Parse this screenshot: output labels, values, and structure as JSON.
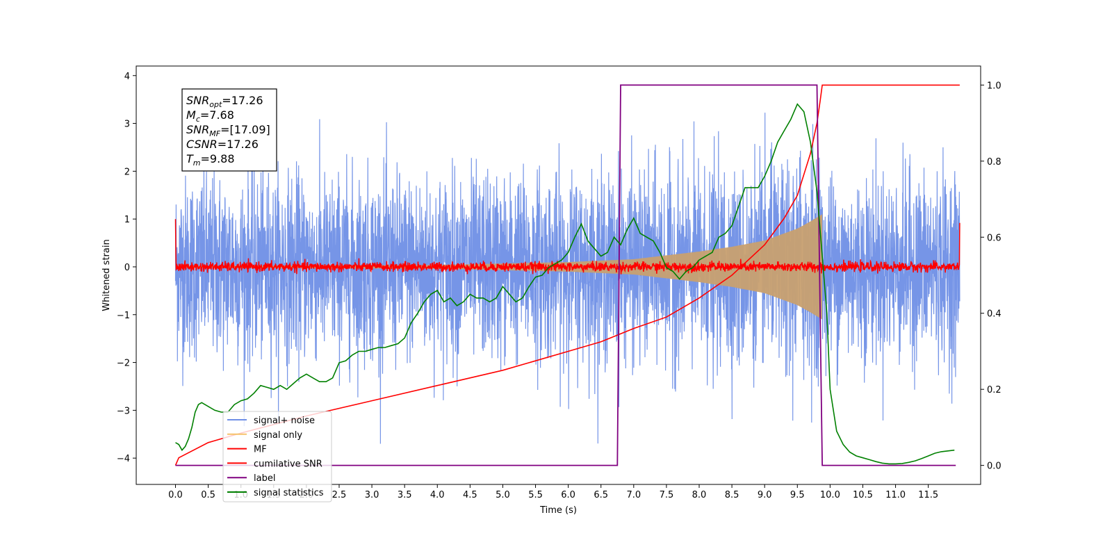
{
  "chart_data": {
    "type": "line",
    "title": "",
    "xlabel": "Time (s)",
    "ylabel_left": "Whitened strain",
    "ylabel_right": "",
    "xlim": [
      -0.6,
      12.3
    ],
    "ylim_left": [
      -4.55,
      4.2
    ],
    "ylim_right": [
      -0.05,
      1.05
    ],
    "x_ticks": [
      0.0,
      0.5,
      1.0,
      1.5,
      2.0,
      2.5,
      3.0,
      3.5,
      4.0,
      4.5,
      5.0,
      5.5,
      6.0,
      6.5,
      7.0,
      7.5,
      8.0,
      8.5,
      9.0,
      9.5,
      10.0,
      10.5,
      11.0,
      11.5
    ],
    "x_tick_labels": [
      "0.0",
      "0.5",
      "1.0",
      "1.5",
      "2.0",
      "2.5",
      "3.0",
      "3.5",
      "4.0",
      "4.5",
      "5.0",
      "5.5",
      "6.0",
      "6.5",
      "7.0",
      "7.5",
      "8.0",
      "8.5",
      "9.0",
      "9.5",
      "10.0",
      "10.5",
      "11.0",
      "11.5"
    ],
    "y_left_ticks": [
      -4,
      -3,
      -2,
      -1,
      0,
      1,
      2,
      3,
      4
    ],
    "y_left_tick_labels": [
      "−4",
      "−3",
      "−2",
      "−1",
      "0",
      "1",
      "2",
      "3",
      "4"
    ],
    "y_right_ticks": [
      0.0,
      0.2,
      0.4,
      0.6,
      0.8,
      1.0
    ],
    "y_right_tick_labels": [
      "0.0",
      "0.2",
      "0.4",
      "0.6",
      "0.8",
      "1.0"
    ],
    "grid": false,
    "legend_position": "bottom-left",
    "legend": [
      {
        "label": "signal+ noise",
        "color": "#6f8fe6"
      },
      {
        "label": "signal only",
        "color": "#f5c26b"
      },
      {
        "label": "MF",
        "color": "#ff0000"
      },
      {
        "label": "cumilative SNR",
        "color": "#ff0000"
      },
      {
        "label": "label",
        "color": "#800080"
      },
      {
        "label": "signal statistics",
        "color": "#008000"
      }
    ],
    "annotation": {
      "lines": [
        {
          "base": "SNR",
          "sub": "opt",
          "value": "=17.26"
        },
        {
          "base": "M",
          "sub": "c",
          "value": "=7.68"
        },
        {
          "base": "SNR",
          "sub": "MF",
          "value": "=[17.09]"
        },
        {
          "base": "CSNR",
          "sub": "",
          "value": "=17.26"
        },
        {
          "base": "T",
          "sub": "m",
          "value": "=9.88"
        }
      ]
    },
    "series": [
      {
        "name": "signal+ noise",
        "axis": "left",
        "color": "#6f8fe6",
        "x_range": [
          0.0,
          11.98
        ],
        "noise_std": 1.0,
        "peak_max": 3.85,
        "peak_min": -3.7
      },
      {
        "name": "signal only",
        "axis": "left",
        "color": "#c8a070",
        "style": "chirp envelope",
        "x_range": [
          0.0,
          9.88
        ],
        "amplitude_points": [
          [
            0.0,
            0.02
          ],
          [
            4.0,
            0.04
          ],
          [
            6.0,
            0.1
          ],
          [
            7.0,
            0.16
          ],
          [
            8.0,
            0.32
          ],
          [
            8.5,
            0.42
          ],
          [
            9.0,
            0.55
          ],
          [
            9.5,
            0.8
          ],
          [
            9.7,
            0.95
          ],
          [
            9.82,
            1.05
          ],
          [
            9.88,
            1.1
          ]
        ]
      },
      {
        "name": "MF",
        "axis": "left",
        "color": "#ff0000",
        "x_range": [
          0.0,
          11.98
        ],
        "noise_std": 0.05,
        "endpoints": [
          [
            0.0,
            1.0
          ],
          [
            11.98,
            0.92
          ]
        ]
      },
      {
        "name": "cumilative SNR",
        "axis": "right",
        "color": "#ff0000",
        "points": [
          [
            0.0,
            0.0
          ],
          [
            0.05,
            0.02
          ],
          [
            0.5,
            0.06
          ],
          [
            1.0,
            0.085
          ],
          [
            2.0,
            0.13
          ],
          [
            3.0,
            0.17
          ],
          [
            4.0,
            0.21
          ],
          [
            5.0,
            0.25
          ],
          [
            6.0,
            0.3
          ],
          [
            6.5,
            0.325
          ],
          [
            7.0,
            0.36
          ],
          [
            7.5,
            0.39
          ],
          [
            8.0,
            0.44
          ],
          [
            8.5,
            0.5
          ],
          [
            9.0,
            0.58
          ],
          [
            9.3,
            0.65
          ],
          [
            9.5,
            0.71
          ],
          [
            9.7,
            0.82
          ],
          [
            9.8,
            0.9
          ],
          [
            9.85,
            0.96
          ],
          [
            9.88,
            1.0
          ],
          [
            11.98,
            1.0
          ]
        ]
      },
      {
        "name": "label",
        "axis": "right",
        "color": "#800080",
        "points": [
          [
            0.0,
            0.0
          ],
          [
            6.75,
            0.0
          ],
          [
            6.8,
            1.0
          ],
          [
            9.8,
            1.0
          ],
          [
            9.88,
            0.0
          ],
          [
            11.92,
            0.0
          ]
        ]
      },
      {
        "name": "signal statistics",
        "axis": "right",
        "color": "#008000",
        "points": [
          [
            0.0,
            0.06
          ],
          [
            0.05,
            0.055
          ],
          [
            0.1,
            0.04
          ],
          [
            0.15,
            0.05
          ],
          [
            0.2,
            0.07
          ],
          [
            0.25,
            0.1
          ],
          [
            0.3,
            0.14
          ],
          [
            0.35,
            0.16
          ],
          [
            0.4,
            0.165
          ],
          [
            0.5,
            0.155
          ],
          [
            0.6,
            0.145
          ],
          [
            0.7,
            0.14
          ],
          [
            0.8,
            0.14
          ],
          [
            0.9,
            0.16
          ],
          [
            1.0,
            0.17
          ],
          [
            1.1,
            0.175
          ],
          [
            1.2,
            0.19
          ],
          [
            1.3,
            0.21
          ],
          [
            1.4,
            0.205
          ],
          [
            1.5,
            0.2
          ],
          [
            1.6,
            0.21
          ],
          [
            1.7,
            0.2
          ],
          [
            1.8,
            0.215
          ],
          [
            1.9,
            0.23
          ],
          [
            2.0,
            0.24
          ],
          [
            2.1,
            0.23
          ],
          [
            2.2,
            0.22
          ],
          [
            2.3,
            0.22
          ],
          [
            2.4,
            0.23
          ],
          [
            2.5,
            0.27
          ],
          [
            2.6,
            0.275
          ],
          [
            2.7,
            0.29
          ],
          [
            2.8,
            0.3
          ],
          [
            2.9,
            0.3
          ],
          [
            3.0,
            0.305
          ],
          [
            3.1,
            0.31
          ],
          [
            3.2,
            0.31
          ],
          [
            3.3,
            0.315
          ],
          [
            3.4,
            0.32
          ],
          [
            3.5,
            0.335
          ],
          [
            3.6,
            0.375
          ],
          [
            3.7,
            0.4
          ],
          [
            3.8,
            0.43
          ],
          [
            3.9,
            0.45
          ],
          [
            4.0,
            0.46
          ],
          [
            4.1,
            0.43
          ],
          [
            4.2,
            0.44
          ],
          [
            4.3,
            0.42
          ],
          [
            4.4,
            0.43
          ],
          [
            4.5,
            0.45
          ],
          [
            4.6,
            0.44
          ],
          [
            4.7,
            0.44
          ],
          [
            4.8,
            0.43
          ],
          [
            4.9,
            0.44
          ],
          [
            5.0,
            0.47
          ],
          [
            5.1,
            0.45
          ],
          [
            5.2,
            0.43
          ],
          [
            5.3,
            0.44
          ],
          [
            5.4,
            0.47
          ],
          [
            5.5,
            0.495
          ],
          [
            5.6,
            0.5
          ],
          [
            5.7,
            0.52
          ],
          [
            5.8,
            0.53
          ],
          [
            5.9,
            0.54
          ],
          [
            6.0,
            0.56
          ],
          [
            6.1,
            0.6
          ],
          [
            6.2,
            0.635
          ],
          [
            6.3,
            0.59
          ],
          [
            6.4,
            0.57
          ],
          [
            6.5,
            0.55
          ],
          [
            6.6,
            0.56
          ],
          [
            6.7,
            0.6
          ],
          [
            6.8,
            0.58
          ],
          [
            6.9,
            0.62
          ],
          [
            7.0,
            0.65
          ],
          [
            7.1,
            0.61
          ],
          [
            7.2,
            0.6
          ],
          [
            7.3,
            0.59
          ],
          [
            7.4,
            0.56
          ],
          [
            7.5,
            0.52
          ],
          [
            7.6,
            0.51
          ],
          [
            7.7,
            0.49
          ],
          [
            7.8,
            0.51
          ],
          [
            7.9,
            0.52
          ],
          [
            8.0,
            0.54
          ],
          [
            8.1,
            0.55
          ],
          [
            8.2,
            0.56
          ],
          [
            8.3,
            0.6
          ],
          [
            8.4,
            0.61
          ],
          [
            8.5,
            0.63
          ],
          [
            8.6,
            0.68
          ],
          [
            8.7,
            0.73
          ],
          [
            8.8,
            0.73
          ],
          [
            8.9,
            0.73
          ],
          [
            9.0,
            0.76
          ],
          [
            9.1,
            0.8
          ],
          [
            9.2,
            0.85
          ],
          [
            9.3,
            0.88
          ],
          [
            9.4,
            0.91
          ],
          [
            9.5,
            0.95
          ],
          [
            9.6,
            0.93
          ],
          [
            9.7,
            0.85
          ],
          [
            9.8,
            0.72
          ],
          [
            9.88,
            0.55
          ],
          [
            9.95,
            0.4
          ],
          [
            10.0,
            0.2
          ],
          [
            10.1,
            0.09
          ],
          [
            10.2,
            0.055
          ],
          [
            10.3,
            0.035
          ],
          [
            10.4,
            0.025
          ],
          [
            10.5,
            0.02
          ],
          [
            10.6,
            0.015
          ],
          [
            10.7,
            0.01
          ],
          [
            10.8,
            0.006
          ],
          [
            10.9,
            0.004
          ],
          [
            11.0,
            0.004
          ],
          [
            11.1,
            0.005
          ],
          [
            11.2,
            0.008
          ],
          [
            11.3,
            0.012
          ],
          [
            11.4,
            0.018
          ],
          [
            11.5,
            0.025
          ],
          [
            11.6,
            0.032
          ],
          [
            11.7,
            0.036
          ],
          [
            11.8,
            0.038
          ],
          [
            11.9,
            0.04
          ]
        ]
      }
    ]
  }
}
